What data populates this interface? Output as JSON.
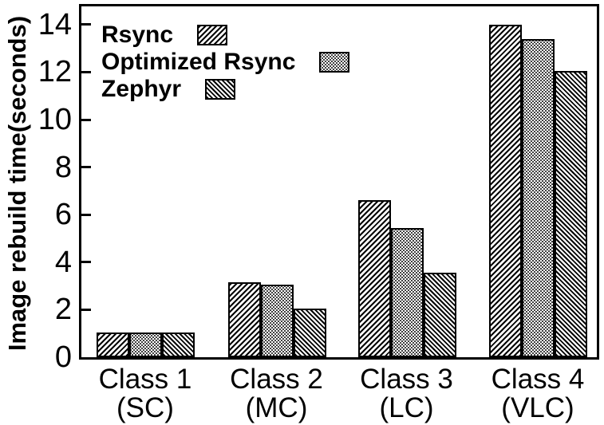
{
  "figure": {
    "background_color": "#ffffff",
    "ink_color": "#000000"
  },
  "chart_data": {
    "type": "bar",
    "title": "",
    "xlabel": "",
    "ylabel": "Image rebuild time(seconds)",
    "ylim": [
      0,
      14.9
    ],
    "yticks": [
      0,
      2,
      4,
      6,
      8,
      10,
      12,
      14
    ],
    "grid": false,
    "legend_position": "top-left-inside",
    "categories": [
      "Class 1",
      "Class 2",
      "Class 3",
      "Class 4"
    ],
    "category_sublabels": [
      "(SC)",
      "(MC)",
      "(LC)",
      "(VLC)"
    ],
    "series": [
      {
        "name": "Rsync",
        "pattern": "hatch-forward",
        "values": [
          1.05,
          3.15,
          6.6,
          14.0
        ]
      },
      {
        "name": "Optimized Rsync",
        "pattern": "dots",
        "values": [
          1.05,
          3.05,
          5.45,
          13.4
        ]
      },
      {
        "name": "Zephyr",
        "pattern": "hatch-backward",
        "values": [
          1.05,
          2.05,
          3.55,
          12.05
        ]
      }
    ]
  }
}
